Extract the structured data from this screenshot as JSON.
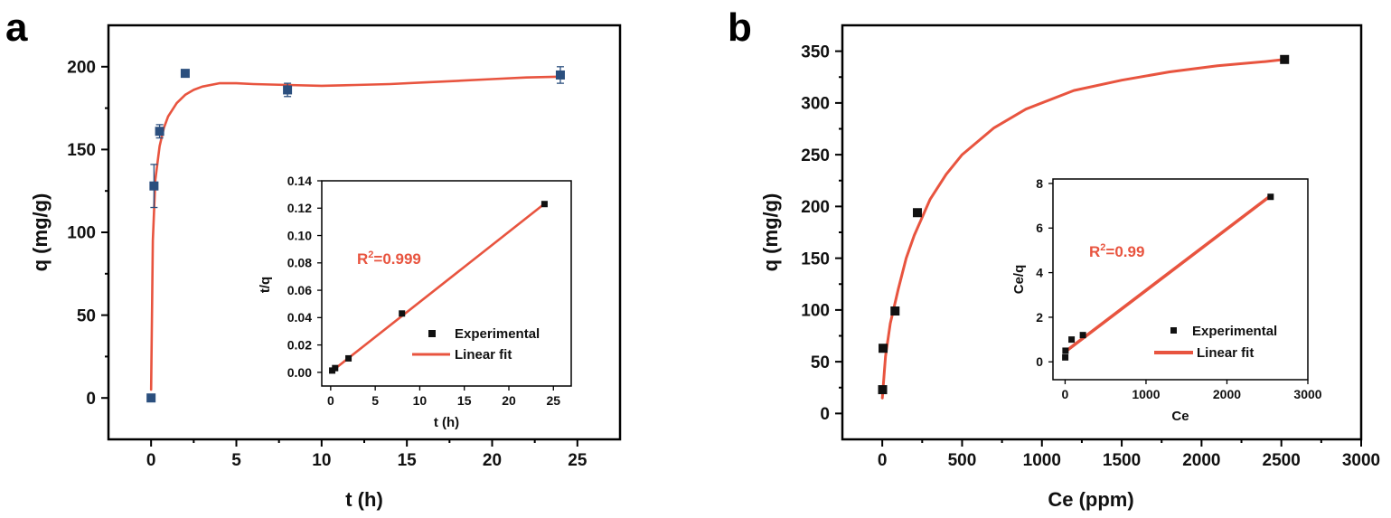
{
  "colors": {
    "fit": "#e8543f",
    "marker_main": "#2b4f7e",
    "marker_inset": "#111111",
    "axis": "#000000"
  },
  "chart_data": [
    {
      "panel_label": "a",
      "type": "scatter",
      "xlabel": "t (h)",
      "ylabel": "q (mg/g)",
      "xlim": [
        -2.5,
        27.5
      ],
      "ylim": [
        -25,
        225
      ],
      "xticks": [
        0,
        5,
        10,
        15,
        20,
        25
      ],
      "yticks": [
        0,
        50,
        100,
        150,
        200
      ],
      "series": [
        {
          "name": "experimental",
          "x": [
            0,
            0.17,
            0.5,
            2,
            8,
            24
          ],
          "y": [
            0,
            128,
            161,
            196,
            186,
            195
          ],
          "err": [
            0,
            13,
            4,
            2,
            4,
            5
          ]
        },
        {
          "name": "fit",
          "x": [
            0,
            0.1,
            0.25,
            0.5,
            0.75,
            1,
            1.5,
            2,
            2.5,
            3,
            4,
            5,
            6,
            8,
            10,
            12,
            14,
            16,
            18,
            20,
            22,
            24
          ],
          "y": [
            5,
            95,
            132,
            152,
            163,
            170,
            178,
            183,
            186,
            188,
            190,
            190,
            189.5,
            189,
            188.5,
            189,
            189.5,
            190.5,
            191.5,
            192.5,
            193.5,
            194
          ]
        }
      ],
      "inset": {
        "type": "scatter",
        "xlabel": "t (h)",
        "ylabel": "t/q",
        "xlim": [
          -1,
          27
        ],
        "ylim": [
          -0.01,
          0.14
        ],
        "xticks": [
          0,
          5,
          10,
          15,
          20,
          25
        ],
        "yticks": [
          "0.00",
          "0.02",
          "0.04",
          "0.06",
          "0.08",
          "0.10",
          "0.12",
          "0.14"
        ],
        "annotation_prefix": "R",
        "annotation_sup": "2",
        "annotation_value": "=0.999",
        "legend": [
          "Experimental",
          "Linear fit"
        ],
        "series": [
          {
            "name": "Experimental",
            "x": [
              0.17,
              0.5,
              2,
              8,
              24
            ],
            "y": [
              0.0013,
              0.0031,
              0.0102,
              0.043,
              0.123
            ]
          },
          {
            "name": "Linear fit",
            "x": [
              0,
              24
            ],
            "y": [
              0.0002,
              0.1232
            ]
          }
        ]
      }
    },
    {
      "panel_label": "b",
      "type": "scatter",
      "xlabel": "Ce (ppm)",
      "ylabel": "q (mg/g)",
      "xlim": [
        -250,
        3000
      ],
      "ylim": [
        -25,
        375
      ],
      "xticks": [
        0,
        500,
        1000,
        1500,
        2000,
        2500,
        3000
      ],
      "yticks": [
        0,
        50,
        100,
        150,
        200,
        250,
        300,
        350
      ],
      "series": [
        {
          "name": "experimental",
          "x": [
            2,
            5,
            80,
            220,
            2520
          ],
          "y": [
            23,
            63,
            99,
            194,
            342
          ]
        },
        {
          "name": "fit",
          "x": [
            0,
            20,
            50,
            100,
            150,
            200,
            300,
            400,
            500,
            700,
            900,
            1200,
            1500,
            1800,
            2100,
            2400,
            2520
          ],
          "y": [
            15,
            55,
            87,
            120,
            150,
            172,
            207,
            231,
            250,
            276,
            294,
            312,
            322,
            330,
            336,
            340,
            342
          ]
        }
      ],
      "inset": {
        "type": "scatter",
        "xlabel": "Ce",
        "ylabel": "Ce/q",
        "xlim": [
          -150,
          3000
        ],
        "ylim": [
          -0.8,
          8.2
        ],
        "xticks": [
          0,
          1000,
          2000,
          3000
        ],
        "yticks": [
          0,
          2,
          4,
          6,
          8
        ],
        "annotation_prefix": "R",
        "annotation_sup": "2",
        "annotation_value": "=0.99",
        "legend": [
          "Experimental",
          "Linear fit"
        ],
        "series": [
          {
            "name": "Experimental",
            "x": [
              2,
              5,
              80,
              220,
              2540
            ],
            "y": [
              0.2,
              0.5,
              1.0,
              1.2,
              7.4
            ]
          },
          {
            "name": "Linear fit",
            "x": [
              0,
              2540
            ],
            "y": [
              0.45,
              7.45
            ]
          }
        ]
      }
    }
  ]
}
